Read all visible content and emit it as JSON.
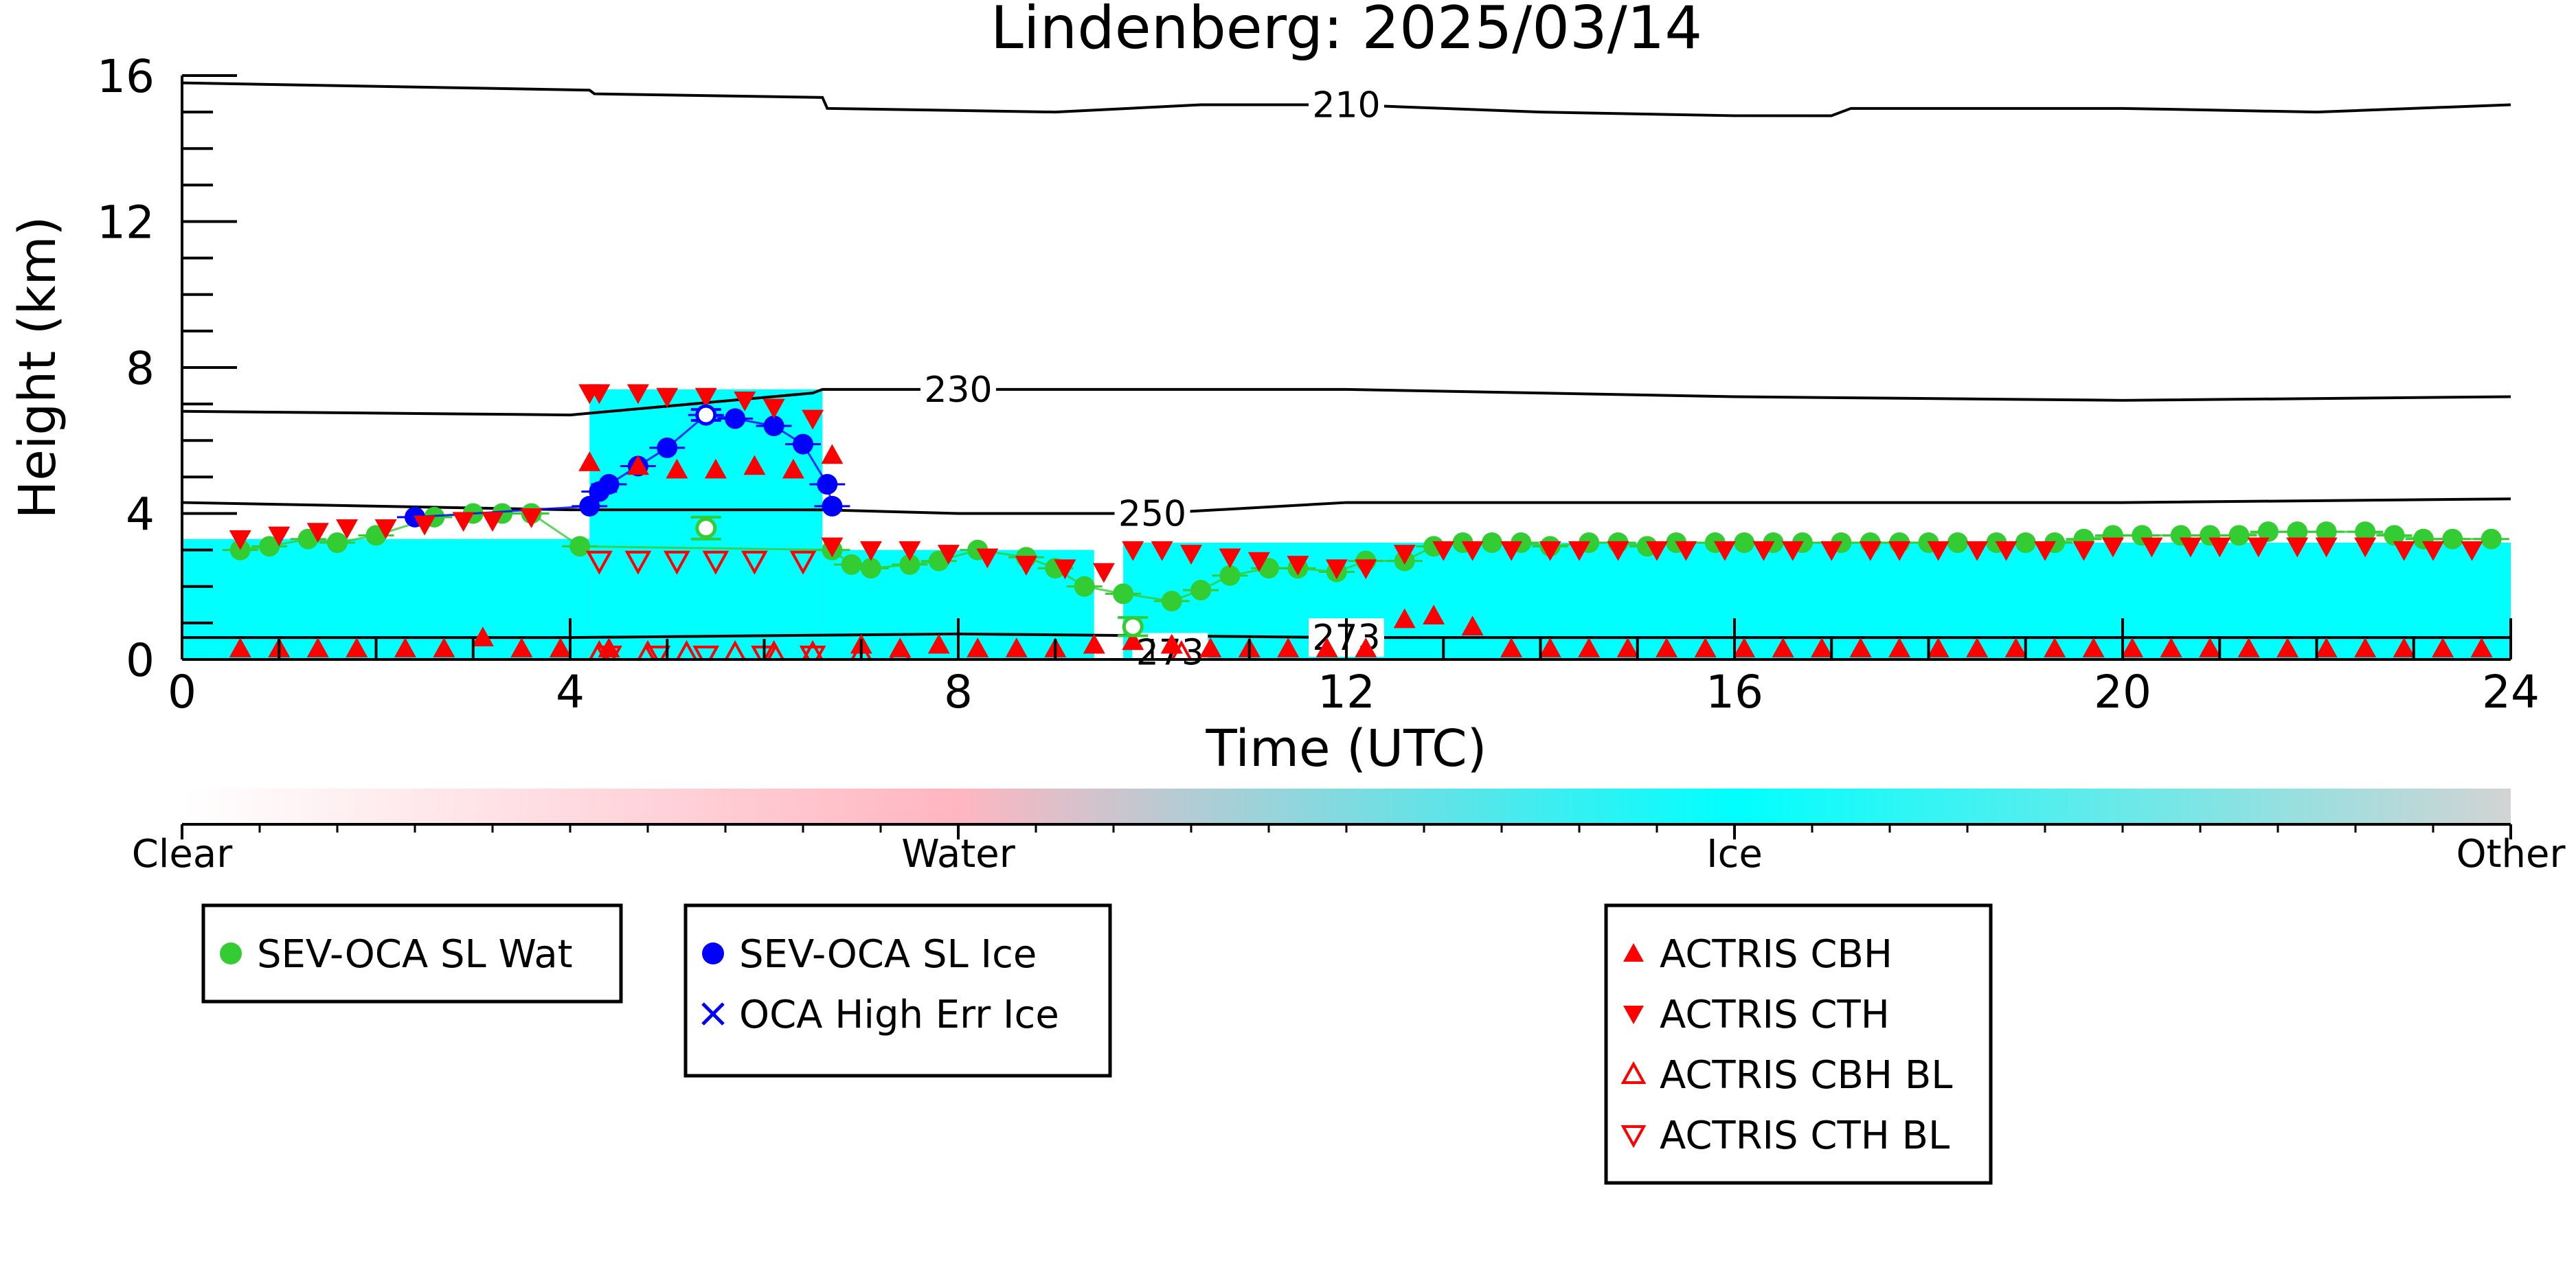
{
  "chart_data": {
    "type": "scatter",
    "title": "Lindenberg: 2025/03/14",
    "xlabel": "Time (UTC)",
    "ylabel": "Height (km)",
    "xlim": [
      0,
      24
    ],
    "ylim": [
      0,
      16
    ],
    "x_ticks": [
      "0",
      "4",
      "8",
      "12",
      "16",
      "20",
      "24"
    ],
    "y_ticks": [
      "0",
      "4",
      "8",
      "12",
      "16"
    ],
    "grid": false,
    "colorbar": {
      "labels": [
        "Clear",
        "Water",
        "Ice",
        "Other"
      ],
      "colors": [
        "#ffffff",
        "#ffb6c1",
        "#00ffff",
        "#d3d3d3"
      ]
    },
    "classification_background": [
      {
        "x0": 0.0,
        "x1": 4.2,
        "top_km": 3.3,
        "class": "Ice"
      },
      {
        "x0": 4.2,
        "x1": 6.6,
        "top_km": 7.4,
        "class": "Ice"
      },
      {
        "x0": 6.6,
        "x1": 9.4,
        "top_km": 3.0,
        "class": "Ice"
      },
      {
        "x0": 9.7,
        "x1": 24.0,
        "top_km": 3.2,
        "class": "Ice"
      }
    ],
    "isotherms": [
      {
        "label": "210",
        "x": [
          0,
          4.2,
          4.25,
          6.6,
          6.65,
          9,
          10.5,
          12,
          14,
          16,
          17,
          17.2,
          20,
          22,
          24
        ],
        "y": [
          15.8,
          15.6,
          15.5,
          15.4,
          15.1,
          15.0,
          15.2,
          15.2,
          15.0,
          14.9,
          14.9,
          15.1,
          15.1,
          15.0,
          15.2
        ]
      },
      {
        "label": "230",
        "x": [
          0,
          4.0,
          6.5,
          6.6,
          8,
          12,
          16,
          20,
          24
        ],
        "y": [
          6.8,
          6.7,
          7.3,
          7.4,
          7.4,
          7.4,
          7.2,
          7.1,
          7.2
        ]
      },
      {
        "label": "250",
        "x": [
          0,
          4.0,
          6.6,
          8,
          10,
          12,
          16,
          20,
          24
        ],
        "y": [
          4.3,
          4.1,
          4.1,
          4.0,
          4.0,
          4.3,
          4.3,
          4.3,
          4.4
        ]
      },
      {
        "label": "273",
        "x": [
          0,
          4,
          8,
          12,
          16,
          20,
          24
        ],
        "y": [
          0.6,
          0.6,
          0.7,
          0.6,
          0.6,
          0.6,
          0.6
        ]
      },
      {
        "label": "273",
        "x": [
          9.9,
          10.5
        ],
        "y": [
          0.2,
          0.2
        ]
      }
    ],
    "series": [
      {
        "name": "SEV-OCA SL Wat",
        "color": "#33cc33",
        "marker": "circle",
        "x": [
          0.6,
          0.9,
          1.3,
          1.6,
          2.0,
          2.6,
          3.0,
          3.3,
          3.6,
          4.1,
          6.7,
          6.9,
          7.1,
          7.5,
          7.8,
          8.2,
          8.7,
          9.0,
          9.3,
          9.7,
          10.2,
          10.5,
          10.8,
          11.2,
          11.5,
          11.9,
          12.2,
          12.6,
          12.9,
          13.2,
          13.5,
          13.8,
          14.1,
          14.5,
          14.8,
          15.1,
          15.4,
          15.8,
          16.1,
          16.4,
          16.7,
          17.1,
          17.4,
          17.7,
          18.0,
          18.3,
          18.7,
          19.0,
          19.3,
          19.6,
          19.9,
          20.2,
          20.6,
          20.9,
          21.2,
          21.5,
          21.8,
          22.1,
          22.5,
          22.8,
          23.1,
          23.4,
          23.8
        ],
        "y": [
          3.0,
          3.1,
          3.3,
          3.2,
          3.4,
          3.9,
          4.0,
          4.0,
          4.0,
          3.1,
          3.0,
          2.6,
          2.5,
          2.6,
          2.7,
          3.0,
          2.8,
          2.5,
          2.0,
          1.8,
          1.6,
          1.9,
          2.3,
          2.5,
          2.5,
          2.4,
          2.7,
          2.7,
          3.1,
          3.2,
          3.2,
          3.2,
          3.1,
          3.2,
          3.2,
          3.1,
          3.2,
          3.2,
          3.2,
          3.2,
          3.2,
          3.2,
          3.2,
          3.2,
          3.2,
          3.2,
          3.2,
          3.2,
          3.2,
          3.3,
          3.4,
          3.4,
          3.4,
          3.4,
          3.4,
          3.5,
          3.5,
          3.5,
          3.5,
          3.4,
          3.3,
          3.3,
          3.3
        ]
      },
      {
        "name": "SEV-OCA SL Ice",
        "color": "#0000ff",
        "marker": "circle",
        "x": [
          2.4,
          4.2,
          4.3,
          4.4,
          4.7,
          5.0,
          5.4,
          5.7,
          6.1,
          6.4,
          6.65,
          6.7
        ],
        "y": [
          3.9,
          4.2,
          4.6,
          4.8,
          5.3,
          5.8,
          6.7,
          6.6,
          6.4,
          5.9,
          4.8,
          4.2
        ]
      },
      {
        "name": "OCA High Err Ice",
        "color": "#0000ff",
        "marker": "x",
        "x": [],
        "y": []
      },
      {
        "name": "ACTRIS CBH",
        "color": "#ff0000",
        "marker": "triangle-up",
        "x": [
          0.6,
          1.0,
          1.4,
          1.8,
          2.3,
          2.7,
          3.1,
          3.5,
          3.9,
          4.2,
          4.4,
          4.7,
          5.1,
          5.5,
          5.9,
          6.3,
          6.7,
          7.0,
          7.4,
          7.8,
          8.2,
          8.6,
          9.0,
          9.4,
          9.8,
          10.2,
          10.6,
          11.0,
          11.4,
          11.8,
          12.2,
          12.6,
          12.9,
          13.3,
          13.7,
          14.1,
          14.5,
          14.9,
          15.3,
          15.7,
          16.1,
          16.5,
          16.9,
          17.3,
          17.7,
          18.1,
          18.5,
          18.9,
          19.3,
          19.7,
          20.1,
          20.5,
          20.9,
          21.3,
          21.7,
          22.1,
          22.5,
          22.9,
          23.3,
          23.7
        ],
        "y": [
          0.3,
          0.3,
          0.3,
          0.3,
          0.3,
          0.3,
          0.6,
          0.3,
          0.3,
          5.4,
          0.3,
          5.3,
          5.2,
          5.2,
          5.3,
          5.2,
          5.6,
          0.4,
          0.3,
          0.4,
          0.3,
          0.3,
          0.3,
          0.4,
          0.5,
          0.4,
          0.3,
          0.3,
          0.3,
          0.3,
          0.3,
          1.1,
          1.2,
          0.9,
          0.3,
          0.3,
          0.3,
          0.3,
          0.3,
          0.3,
          0.3,
          0.3,
          0.3,
          0.3,
          0.3,
          0.3,
          0.3,
          0.3,
          0.3,
          0.3,
          0.3,
          0.3,
          0.3,
          0.3,
          0.3,
          0.3,
          0.3,
          0.3,
          0.3,
          0.3
        ]
      },
      {
        "name": "ACTRIS CTH",
        "color": "#ff0000",
        "marker": "triangle-down",
        "x": [
          0.6,
          1.0,
          1.4,
          1.7,
          2.1,
          2.5,
          2.9,
          3.2,
          3.6,
          4.2,
          4.3,
          4.7,
          5.0,
          5.4,
          5.8,
          6.1,
          6.5,
          6.7,
          7.1,
          7.5,
          7.9,
          8.3,
          8.7,
          9.1,
          9.5,
          9.8,
          10.1,
          10.4,
          10.8,
          11.1,
          11.5,
          11.9,
          12.2,
          12.6,
          13.0,
          13.3,
          13.7,
          14.1,
          14.4,
          14.8,
          15.2,
          15.5,
          15.9,
          16.3,
          16.6,
          17.0,
          17.4,
          17.7,
          18.1,
          18.5,
          18.8,
          19.2,
          19.6,
          19.9,
          20.3,
          20.7,
          21.0,
          21.4,
          21.8,
          22.1,
          22.5,
          22.9,
          23.2,
          23.6
        ],
        "y": [
          3.3,
          3.4,
          3.5,
          3.6,
          3.6,
          3.7,
          3.8,
          3.8,
          3.9,
          7.3,
          7.3,
          7.3,
          7.2,
          7.2,
          7.1,
          6.9,
          6.6,
          3.1,
          3.0,
          3.0,
          2.9,
          2.8,
          2.6,
          2.5,
          2.4,
          3.0,
          3.0,
          2.9,
          2.8,
          2.7,
          2.6,
          2.5,
          2.5,
          2.9,
          3.0,
          3.0,
          3.0,
          3.0,
          3.0,
          3.0,
          3.0,
          3.0,
          3.0,
          3.0,
          3.0,
          3.0,
          3.0,
          3.0,
          3.0,
          3.0,
          3.0,
          3.0,
          3.0,
          3.1,
          3.1,
          3.1,
          3.1,
          3.1,
          3.1,
          3.1,
          3.1,
          3.0,
          3.0,
          3.0
        ]
      },
      {
        "name": "ACTRIS CBH BL",
        "color": "#ff0000",
        "marker": "triangle-up-open",
        "x": [
          4.3,
          4.8,
          5.2,
          5.7,
          6.1,
          6.5,
          7.0,
          7.4,
          10.3
        ],
        "y": [
          0.15,
          0.15,
          0.15,
          0.15,
          0.15,
          0.15,
          0.15,
          0.15,
          0.15
        ]
      },
      {
        "name": "ACTRIS CTH BL",
        "color": "#ff0000",
        "marker": "triangle-down-open",
        "x": [
          4.3,
          4.7,
          5.1,
          5.5,
          5.9,
          6.4,
          4.4,
          4.9,
          5.4,
          6.0,
          6.5
        ],
        "y": [
          2.7,
          2.7,
          2.7,
          2.7,
          2.7,
          2.7,
          0.1,
          0.1,
          0.1,
          0.1,
          0.1
        ]
      }
    ],
    "open_markers": [
      {
        "x": 5.4,
        "y": 3.6,
        "color": "#33cc33",
        "err": 0.3
      },
      {
        "x": 5.4,
        "y": 6.7,
        "color": "#0000ff",
        "err": 0.15
      },
      {
        "x": 9.8,
        "y": 0.9,
        "color": "#33cc33",
        "err": 0.25
      }
    ],
    "legends": [
      {
        "entries": [
          {
            "label": "SEV-OCA SL Wat",
            "marker": "circle",
            "color": "#33cc33"
          }
        ]
      },
      {
        "entries": [
          {
            "label": "SEV-OCA SL Ice",
            "marker": "circle",
            "color": "#0000ff"
          },
          {
            "label": "OCA High Err Ice",
            "marker": "x",
            "color": "#0000ff"
          }
        ]
      },
      {
        "entries": [
          {
            "label": "ACTRIS CBH",
            "marker": "triangle-up",
            "color": "#ff0000"
          },
          {
            "label": "ACTRIS CTH",
            "marker": "triangle-down",
            "color": "#ff0000"
          },
          {
            "label": "ACTRIS CBH BL",
            "marker": "triangle-up-open",
            "color": "#ff0000"
          },
          {
            "label": "ACTRIS CTH BL",
            "marker": "triangle-down-open",
            "color": "#ff0000"
          }
        ]
      }
    ]
  }
}
